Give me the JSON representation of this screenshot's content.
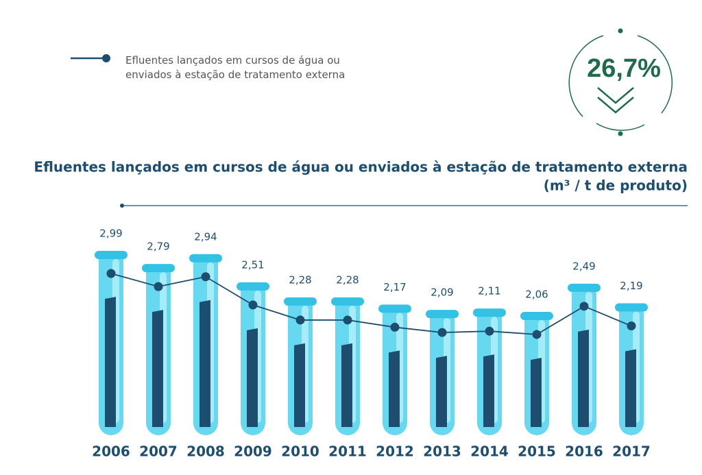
{
  "chart_data": {
    "type": "tube",
    "title": "Efluentes lançados em cursos de água ou enviados à estação de tratamento externa",
    "subtitle": "(m³ / t de produto)",
    "badge": "26,7%",
    "categories": [
      "2006",
      "2007",
      "2008",
      "2009",
      "2010",
      "2011",
      "2012",
      "2013",
      "2014",
      "2015",
      "2016",
      "2017"
    ],
    "series": [
      {
        "name": "Efluentes lançados em cursos de água ou enviados à estação de tratamento externa",
        "color": "#1d4e70",
        "values": [
          2.99,
          2.79,
          2.94,
          2.51,
          2.28,
          2.28,
          2.17,
          2.09,
          2.11,
          2.06,
          2.49,
          2.19
        ],
        "value_labels": [
          "2,99",
          "2,79",
          "2,94",
          "2,51",
          "2,28",
          "2,28",
          "2,17",
          "2,09",
          "2,11",
          "2,06",
          "2,49",
          "2,19"
        ]
      }
    ]
  }
}
